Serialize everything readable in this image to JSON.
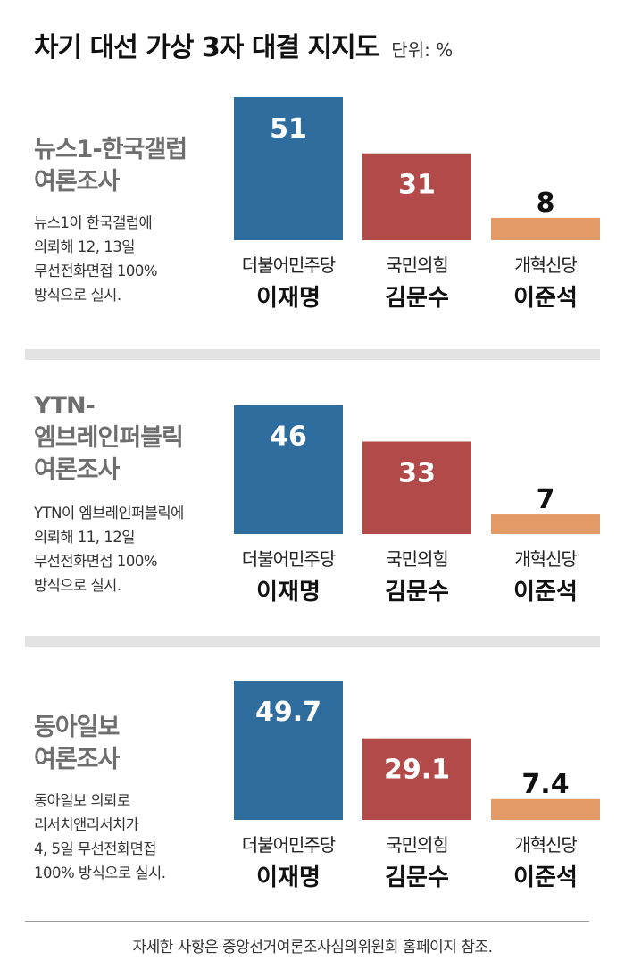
{
  "header": {
    "title": "차기 대선 가상 3자 대결 지지도",
    "unit": "단위: %"
  },
  "colors": {
    "더불어민주당": "#2f6d9e",
    "국민의힘": "#b34a4a",
    "개혁신당": "#e49a66"
  },
  "chart_data": [
    {
      "type": "bar",
      "survey": [
        "뉴스1-한국갤럽",
        "여론조사"
      ],
      "note": [
        "뉴스1이 한국갤럽에",
        "의뢰해 12, 13일",
        "무선전화면접 100%",
        "방식으로 실시."
      ],
      "categories": [
        {
          "party": "더불어민주당",
          "candidate": "이재명"
        },
        {
          "party": "국민의힘",
          "candidate": "김문수"
        },
        {
          "party": "개혁신당",
          "candidate": "이준석"
        }
      ],
      "values": [
        51,
        31,
        8
      ],
      "labels": [
        "51",
        "31",
        "8"
      ],
      "ylim": [
        0,
        51
      ]
    },
    {
      "type": "bar",
      "survey": [
        "YTN-",
        "엠브레인퍼블릭",
        "여론조사"
      ],
      "note": [
        "YTN이 엠브레인퍼블릭에",
        "의뢰해 11, 12일",
        "무선전화면접 100%",
        "방식으로 실시."
      ],
      "categories": [
        {
          "party": "더불어민주당",
          "candidate": "이재명"
        },
        {
          "party": "국민의힘",
          "candidate": "김문수"
        },
        {
          "party": "개혁신당",
          "candidate": "이준석"
        }
      ],
      "values": [
        46,
        33,
        7
      ],
      "labels": [
        "46",
        "33",
        "7"
      ],
      "ylim": [
        0,
        51
      ]
    },
    {
      "type": "bar",
      "survey": [
        "동아일보",
        "여론조사"
      ],
      "note": [
        "동아일보 의뢰로",
        "리서치앤리서치가",
        "4, 5일 무선전화면접",
        "100% 방식으로 실시."
      ],
      "categories": [
        {
          "party": "더불어민주당",
          "candidate": "이재명"
        },
        {
          "party": "국민의힘",
          "candidate": "김문수"
        },
        {
          "party": "개혁신당",
          "candidate": "이준석"
        }
      ],
      "values": [
        49.7,
        29.1,
        7.4
      ],
      "labels": [
        "49.7",
        "29.1",
        "7.4"
      ],
      "ylim": [
        0,
        51
      ]
    }
  ],
  "footer": "자세한 사항은 중앙선거여론조사심의위원회 홈페이지 참조."
}
